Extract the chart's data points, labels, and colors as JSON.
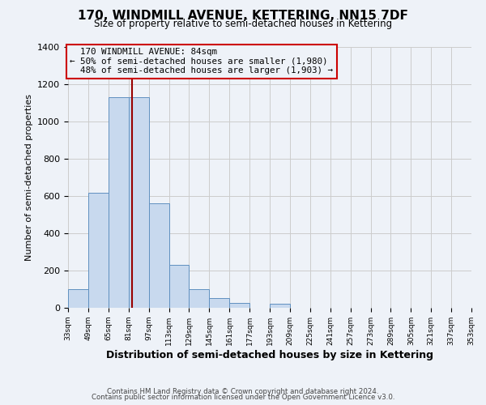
{
  "title": "170, WINDMILL AVENUE, KETTERING, NN15 7DF",
  "subtitle": "Size of property relative to semi-detached houses in Kettering",
  "xlabel": "Distribution of semi-detached houses by size in Kettering",
  "ylabel": "Number of semi-detached properties",
  "bar_edges": [
    33,
    49,
    65,
    81,
    97,
    113,
    129,
    145,
    161,
    177,
    193,
    209,
    225,
    241,
    257,
    273,
    289,
    305,
    321,
    337,
    353
  ],
  "bar_heights": [
    100,
    615,
    1130,
    1130,
    560,
    230,
    100,
    50,
    25,
    0,
    20,
    0,
    0,
    0,
    0,
    0,
    0,
    0,
    0,
    0
  ],
  "property_size": 84,
  "property_label": "170 WINDMILL AVENUE: 84sqm",
  "pct_smaller": 50,
  "n_smaller": 1980,
  "pct_larger": 48,
  "n_larger": 1903,
  "bar_fill_color": "#c8d9ee",
  "bar_edge_color": "#6090c0",
  "vline_color": "#990000",
  "annotation_box_edge": "#cc0000",
  "ylim": [
    0,
    1400
  ],
  "yticks": [
    0,
    200,
    400,
    600,
    800,
    1000,
    1200,
    1400
  ],
  "grid_color": "#cccccc",
  "background_color": "#eef2f8",
  "footer_line1": "Contains HM Land Registry data © Crown copyright and database right 2024.",
  "footer_line2": "Contains public sector information licensed under the Open Government Licence v3.0."
}
